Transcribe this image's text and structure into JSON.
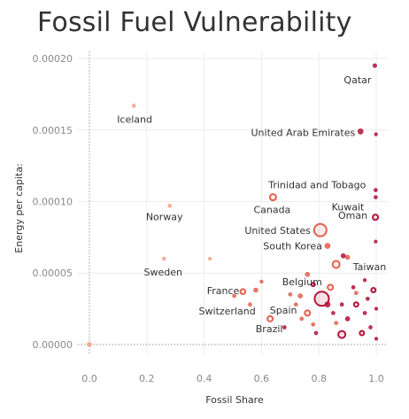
{
  "title": "Fossil Fuel Vulnerability",
  "chart_data": {
    "type": "scatter",
    "title": "Fossil Fuel Vulnerability",
    "xlabel": "Fossil Share",
    "ylabel": "Energy per capita:",
    "xlim": [
      -0.04,
      1.04
    ],
    "ylim": [
      -7.5e-06,
      0.000205
    ],
    "xticks": [
      {
        "value": 0.0,
        "label": "0.0"
      },
      {
        "value": 0.2,
        "label": "0.2"
      },
      {
        "value": 0.4,
        "label": "0.4"
      },
      {
        "value": 0.6,
        "label": "0.6"
      },
      {
        "value": 0.8,
        "label": "0.8"
      },
      {
        "value": 1.0,
        "label": "1.0"
      }
    ],
    "yticks": [
      {
        "value": 0.0,
        "label": "0.00000"
      },
      {
        "value": 5e-05,
        "label": "0.00005"
      },
      {
        "value": 0.0001,
        "label": "0.00010"
      },
      {
        "value": 0.00015,
        "label": "0.00015"
      },
      {
        "value": 0.0002,
        "label": "0.00020"
      }
    ],
    "grid": true,
    "colors": {
      "light": "#f2a58c",
      "mid": "#e2614f",
      "dark": "#b3133b"
    },
    "labeled_points": [
      {
        "name": "Qatar",
        "x": 0.995,
        "y": 0.000195,
        "r": 2.2,
        "color": "#b3133b",
        "fill": true
      },
      {
        "name": "Iceland",
        "x": 0.155,
        "y": 0.000167,
        "r": 2,
        "color": "#f2a58c",
        "fill": true
      },
      {
        "name": "United Arab Emirates",
        "x": 0.945,
        "y": 0.000149,
        "r": 3,
        "color": "#b3133b",
        "fill": true
      },
      {
        "name": "Trinidad and Tobago",
        "x": 0.998,
        "y": 0.000108,
        "r": 2,
        "color": "#b3133b",
        "fill": true
      },
      {
        "name": "Kuwait",
        "x": 0.998,
        "y": 0.000103,
        "r": 2,
        "color": "#b3133b",
        "fill": true
      },
      {
        "name": "Canada",
        "x": 0.64,
        "y": 0.000103,
        "r": 3.5,
        "color": "#e2614f",
        "fill": false
      },
      {
        "name": "Norway",
        "x": 0.28,
        "y": 9.7e-05,
        "r": 2,
        "color": "#f2a58c",
        "fill": true
      },
      {
        "name": "Oman",
        "x": 0.997,
        "y": 8.9e-05,
        "r": 3,
        "color": "#b3133b",
        "fill": false
      },
      {
        "name": "United States",
        "x": 0.805,
        "y": 8e-05,
        "r": 7,
        "color": "#e2614f",
        "fill": false
      },
      {
        "name": "South Korea",
        "x": 0.83,
        "y": 6.9e-05,
        "r": 3,
        "color": "#e2614f",
        "fill": true
      },
      {
        "name": "Taiwan",
        "x": 0.885,
        "y": 6.2e-05,
        "r": 2.5,
        "color": "#b3133b",
        "fill": true
      },
      {
        "name": "Sweden",
        "x": 0.26,
        "y": 6e-05,
        "r": 2,
        "color": "#f2a58c",
        "fill": true
      },
      {
        "name": "Belgium",
        "x": 0.76,
        "y": 4.9e-05,
        "r": 2.5,
        "color": "#e2614f",
        "fill": true
      },
      {
        "name": "France",
        "x": 0.535,
        "y": 3.7e-05,
        "r": 2.8,
        "color": "#e2614f",
        "fill": false
      },
      {
        "name": "Switzerland",
        "x": 0.505,
        "y": 3.4e-05,
        "r": 2,
        "color": "#e2614f",
        "fill": true
      },
      {
        "name": "Spain",
        "x": 0.735,
        "y": 3.4e-05,
        "r": 2.5,
        "color": "#e2614f",
        "fill": true
      },
      {
        "name": "Brazil",
        "x": 0.63,
        "y": 1.8e-05,
        "r": 3,
        "color": "#e2614f",
        "fill": false
      }
    ],
    "points": [
      {
        "x": 0.0,
        "y": 0.0,
        "r": 2.5,
        "color": "#f2a58c",
        "fill": true
      },
      {
        "x": 0.42,
        "y": 6e-05,
        "r": 1.8,
        "color": "#f2a58c",
        "fill": true
      },
      {
        "x": 0.999,
        "y": 0.000147,
        "r": 1.8,
        "color": "#b3133b",
        "fill": true
      },
      {
        "x": 0.998,
        "y": 7.2e-05,
        "r": 1.8,
        "color": "#b3133b",
        "fill": true
      },
      {
        "x": 0.6,
        "y": 4.4e-05,
        "r": 1.8,
        "color": "#e2614f",
        "fill": true
      },
      {
        "x": 0.58,
        "y": 3.8e-05,
        "r": 2.5,
        "color": "#e2614f",
        "fill": true
      },
      {
        "x": 0.56,
        "y": 2.8e-05,
        "r": 2,
        "color": "#e2614f",
        "fill": true
      },
      {
        "x": 0.86,
        "y": 5.6e-05,
        "r": 4,
        "color": "#e2614f",
        "fill": false
      },
      {
        "x": 0.9,
        "y": 6.1e-05,
        "r": 2.5,
        "color": "#e2614f",
        "fill": true
      },
      {
        "x": 0.84,
        "y": 4e-05,
        "r": 3,
        "color": "#e2614f",
        "fill": false
      },
      {
        "x": 0.78,
        "y": 4.2e-05,
        "r": 2,
        "color": "#b3133b",
        "fill": false
      },
      {
        "x": 0.96,
        "y": 4.5e-05,
        "r": 1.8,
        "color": "#b3133b",
        "fill": true
      },
      {
        "x": 0.99,
        "y": 3.8e-05,
        "r": 2.5,
        "color": "#b3133b",
        "fill": false
      },
      {
        "x": 0.92,
        "y": 4e-05,
        "r": 2,
        "color": "#b3133b",
        "fill": true
      },
      {
        "x": 0.81,
        "y": 3.2e-05,
        "r": 8,
        "color": "#b3133b",
        "fill": false
      },
      {
        "x": 0.83,
        "y": 2.8e-05,
        "r": 3,
        "color": "#b3133b",
        "fill": true
      },
      {
        "x": 0.7,
        "y": 3.5e-05,
        "r": 2,
        "color": "#e2614f",
        "fill": true
      },
      {
        "x": 0.76,
        "y": 2.2e-05,
        "r": 3,
        "color": "#e2614f",
        "fill": false
      },
      {
        "x": 0.72,
        "y": 2.8e-05,
        "r": 2,
        "color": "#e2614f",
        "fill": true
      },
      {
        "x": 0.74,
        "y": 1.8e-05,
        "r": 2,
        "color": "#e2614f",
        "fill": true
      },
      {
        "x": 0.68,
        "y": 1.2e-05,
        "r": 2,
        "color": "#b3133b",
        "fill": true
      },
      {
        "x": 0.88,
        "y": 7e-06,
        "r": 4,
        "color": "#b3133b",
        "fill": false
      },
      {
        "x": 0.9,
        "y": 1.8e-05,
        "r": 2.5,
        "color": "#b3133b",
        "fill": true
      },
      {
        "x": 0.93,
        "y": 2.8e-05,
        "r": 2.5,
        "color": "#b3133b",
        "fill": false
      },
      {
        "x": 0.96,
        "y": 2.2e-05,
        "r": 2,
        "color": "#b3133b",
        "fill": true
      },
      {
        "x": 0.98,
        "y": 1.2e-05,
        "r": 2,
        "color": "#b3133b",
        "fill": true
      },
      {
        "x": 1.0,
        "y": 4e-06,
        "r": 1.8,
        "color": "#b3133b",
        "fill": true
      },
      {
        "x": 0.95,
        "y": 8e-06,
        "r": 2.5,
        "color": "#b3133b",
        "fill": false
      },
      {
        "x": 0.86,
        "y": 1.5e-05,
        "r": 2,
        "color": "#e2614f",
        "fill": true
      },
      {
        "x": 0.79,
        "y": 8e-06,
        "r": 2,
        "color": "#b3133b",
        "fill": true
      },
      {
        "x": 0.88,
        "y": 2.8e-05,
        "r": 2,
        "color": "#b3133b",
        "fill": true
      },
      {
        "x": 0.97,
        "y": 3.2e-05,
        "r": 2,
        "color": "#b3133b",
        "fill": true
      },
      {
        "x": 1.0,
        "y": 2.5e-05,
        "r": 1.8,
        "color": "#b3133b",
        "fill": true
      },
      {
        "x": 0.93,
        "y": 3.6e-05,
        "r": 2,
        "color": "#e2614f",
        "fill": true
      },
      {
        "x": 0.78,
        "y": 1.4e-05,
        "r": 2,
        "color": "#e2614f",
        "fill": true
      },
      {
        "x": 0.85,
        "y": 2.2e-05,
        "r": 2,
        "color": "#b3133b",
        "fill": true
      }
    ]
  }
}
